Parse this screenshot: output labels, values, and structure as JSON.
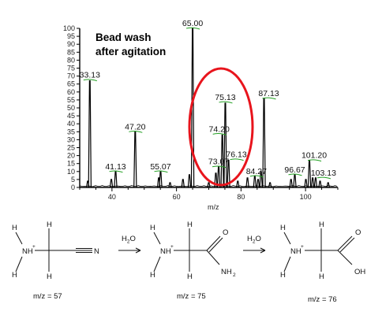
{
  "chart_data": {
    "type": "line",
    "title": "Bead wash after agitation",
    "xlabel": "m/z",
    "ylabel": "",
    "xlim": [
      30,
      110
    ],
    "ylim": [
      0,
      100
    ],
    "x_ticks": [
      "40",
      "60",
      "80",
      "100"
    ],
    "y_ticks": [
      "0",
      "5",
      "10",
      "15",
      "20",
      "25",
      "30",
      "35",
      "40",
      "45",
      "50",
      "55",
      "60",
      "65",
      "70",
      "75",
      "80",
      "85",
      "90",
      "95",
      "100"
    ],
    "peaks": [
      {
        "mz": 33.13,
        "intensity": 67,
        "label": "33.13"
      },
      {
        "mz": 41.13,
        "intensity": 10,
        "label": "41.13"
      },
      {
        "mz": 47.2,
        "intensity": 35,
        "label": "47.20"
      },
      {
        "mz": 55.07,
        "intensity": 10,
        "label": "55.07"
      },
      {
        "mz": 65.0,
        "intensity": 100,
        "label": "65.00"
      },
      {
        "mz": 73.07,
        "intensity": 13,
        "label": "73.07"
      },
      {
        "mz": 74.2,
        "intensity": 33,
        "label": "74.20"
      },
      {
        "mz": 75.13,
        "intensity": 53,
        "label": "75.13"
      },
      {
        "mz": 76.13,
        "intensity": 17,
        "label": "76.13"
      },
      {
        "mz": 84.27,
        "intensity": 7,
        "label": "84.27"
      },
      {
        "mz": 87.13,
        "intensity": 56,
        "label": "87.13"
      },
      {
        "mz": 96.67,
        "intensity": 8,
        "label": "96.67"
      },
      {
        "mz": 101.2,
        "intensity": 17,
        "label": "101.20"
      },
      {
        "mz": 103.13,
        "intensity": 6,
        "label": "103.13"
      }
    ],
    "minor_peaks": [
      {
        "mz": 32.5,
        "intensity": 4
      },
      {
        "mz": 39.8,
        "intensity": 5
      },
      {
        "mz": 54.5,
        "intensity": 6
      },
      {
        "mz": 58.0,
        "intensity": 3
      },
      {
        "mz": 62.0,
        "intensity": 5
      },
      {
        "mz": 64.0,
        "intensity": 8
      },
      {
        "mz": 70.0,
        "intensity": 3
      },
      {
        "mz": 72.2,
        "intensity": 9
      },
      {
        "mz": 79.0,
        "intensity": 4
      },
      {
        "mz": 82.0,
        "intensity": 6
      },
      {
        "mz": 85.3,
        "intensity": 5
      },
      {
        "mz": 86.2,
        "intensity": 10
      },
      {
        "mz": 89.0,
        "intensity": 3
      },
      {
        "mz": 95.5,
        "intensity": 5
      },
      {
        "mz": 100.1,
        "intensity": 5
      },
      {
        "mz": 102.2,
        "intensity": 6
      },
      {
        "mz": 104.5,
        "intensity": 4
      },
      {
        "mz": 107.0,
        "intensity": 3
      }
    ],
    "highlight": {
      "shape": "ellipse",
      "color": "#e8141c",
      "encloses": [
        "73.07",
        "74.20",
        "75.13",
        "76.13"
      ]
    },
    "colors": {
      "trace": "#000000",
      "label_marker": "#22a022"
    }
  },
  "scheme": {
    "arrow1_reagent": "H2O",
    "arrow2_reagent": "H2O",
    "molecules": [
      {
        "mz_label": "m/z = 57",
        "atoms": [
          "H",
          "H",
          "NH",
          "+",
          "H",
          "H",
          "N"
        ]
      },
      {
        "mz_label": "m/z = 75",
        "atoms": [
          "H",
          "H",
          "NH",
          "+",
          "H",
          "H",
          "O",
          "NH",
          "2"
        ]
      },
      {
        "mz_label": "m/z = 76",
        "atoms": [
          "H",
          "H",
          "NH",
          "+",
          "H",
          "H",
          "O",
          "OH"
        ]
      }
    ]
  }
}
